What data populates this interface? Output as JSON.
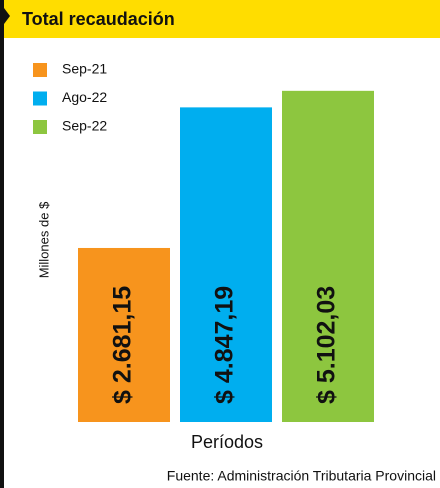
{
  "chart_data": {
    "type": "bar",
    "title": "Total recaudación",
    "y_label": "Millones de $",
    "x_label": "Períodos",
    "source": "Fuente: Administración Tributaria Provincial",
    "series": [
      {
        "name": "Sep-21",
        "color": "#f7941d",
        "values": [
          2681.15
        ],
        "value_labels": [
          "$ 2.681,15"
        ]
      },
      {
        "name": "Ago-22",
        "color": "#00aeef",
        "values": [
          4847.19
        ],
        "value_labels": [
          "$ 4.847,19"
        ]
      },
      {
        "name": "Sep-22",
        "color": "#8dc63f",
        "values": [
          5102.03
        ],
        "value_labels": [
          "$ 5.102,03"
        ]
      }
    ],
    "ylim": [
      0,
      5500
    ]
  }
}
